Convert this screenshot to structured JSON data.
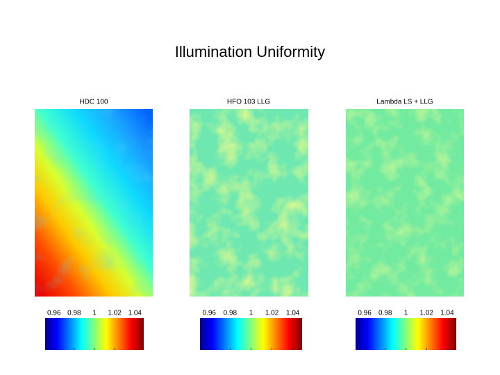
{
  "title": "Illumination Uniformity",
  "panels": [
    {
      "title": "HDC 100",
      "colorbar_ticks": [
        0.96,
        0.98,
        1,
        1.02,
        1.04
      ]
    },
    {
      "title": "HFO 103 LLG",
      "colorbar_ticks": [
        0.96,
        0.98,
        1,
        1.02,
        1.04
      ]
    },
    {
      "title": "Lambda LS + LLG",
      "colorbar_ticks": [
        0.96,
        0.98,
        1,
        1.02,
        1.04
      ]
    }
  ]
}
